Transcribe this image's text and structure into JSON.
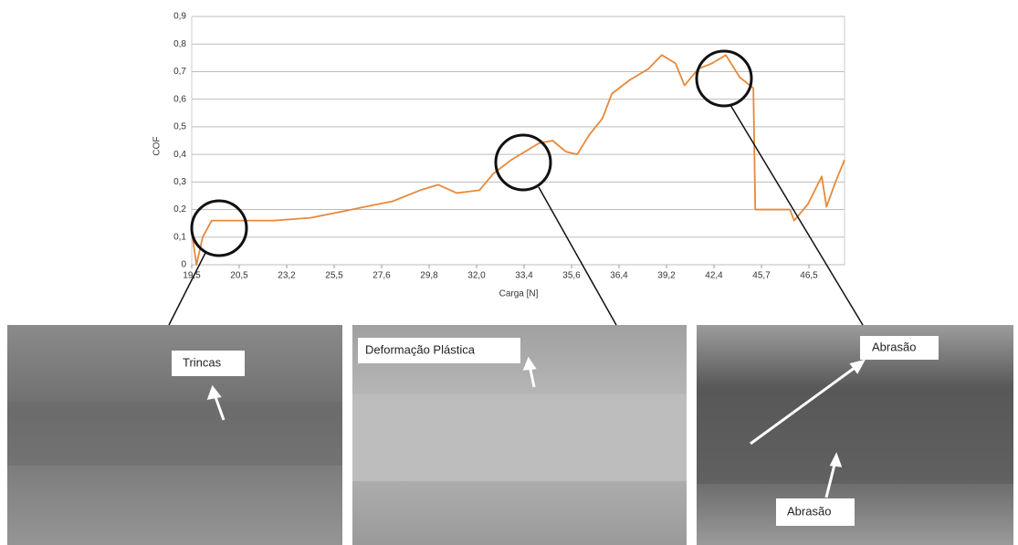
{
  "chart_data": {
    "type": "line",
    "y_label": "COF",
    "x_label": "Carga [N]",
    "color": "#e8883a",
    "grid": true,
    "x": [
      0,
      0.1,
      0.23,
      0.42,
      0.96,
      1.73,
      2.5,
      3.08,
      3.65,
      4.23,
      4.81,
      5.19,
      5.58,
      6.06,
      6.35,
      6.73,
      7.02,
      7.31,
      7.6,
      7.88,
      8.12,
      8.37,
      8.65,
      8.85,
      9.23,
      9.62,
      9.9,
      10.19,
      10.38,
      10.67,
      10.96,
      11.25,
      11.54,
      11.83,
      11.87,
      12.31,
      12.6,
      12.69,
      12.98,
      13.27,
      13.37,
      13.56,
      13.75
    ],
    "values": [
      0.12,
      0.0,
      0.1,
      0.16,
      0.16,
      0.16,
      0.17,
      0.19,
      0.21,
      0.23,
      0.27,
      0.29,
      0.26,
      0.27,
      0.33,
      0.38,
      0.41,
      0.44,
      0.45,
      0.41,
      0.4,
      0.47,
      0.53,
      0.62,
      0.67,
      0.71,
      0.76,
      0.73,
      0.65,
      0.71,
      0.73,
      0.76,
      0.68,
      0.64,
      0.2,
      0.2,
      0.2,
      0.16,
      0.22,
      0.32,
      0.21,
      0.3,
      0.38
    ],
    "xlim": [
      0,
      13.75
    ],
    "xticks": [
      {
        "value": 0,
        "label": "19,5"
      },
      {
        "value": 1,
        "label": "20,5"
      },
      {
        "value": 2,
        "label": "23,2"
      },
      {
        "value": 3,
        "label": "25,5"
      },
      {
        "value": 4,
        "label": "27,6"
      },
      {
        "value": 5,
        "label": "29,8"
      },
      {
        "value": 6,
        "label": "32,0"
      },
      {
        "value": 7,
        "label": "33,4"
      },
      {
        "value": 8,
        "label": "35,6"
      },
      {
        "value": 9,
        "label": "36,4"
      },
      {
        "value": 10,
        "label": "39,2"
      },
      {
        "value": 11,
        "label": "42,4"
      },
      {
        "value": 12,
        "label": "45,7"
      },
      {
        "value": 13,
        "label": "46,5"
      }
    ],
    "ylim": [
      0,
      0.9
    ],
    "yticks": [
      0,
      {
        "value": 0.1,
        "label": "0,1"
      },
      {
        "value": 0.2,
        "label": "0,2"
      },
      {
        "value": 0.3,
        "label": "0,3"
      },
      {
        "value": 0.4,
        "label": "0,4"
      },
      {
        "value": 0.5,
        "label": "0,5"
      },
      {
        "value": 0.6,
        "label": "0,6"
      },
      {
        "value": 0.7,
        "label": "0,7"
      },
      {
        "value": 0.8,
        "label": "0,8"
      },
      {
        "value": 0.9,
        "label": "0,9"
      }
    ]
  },
  "panels": [
    {
      "labels": [
        "Trincas"
      ]
    },
    {
      "labels": [
        "Deformação Plástica"
      ]
    },
    {
      "labels": [
        "Abrasão",
        "Abrasão"
      ]
    }
  ]
}
